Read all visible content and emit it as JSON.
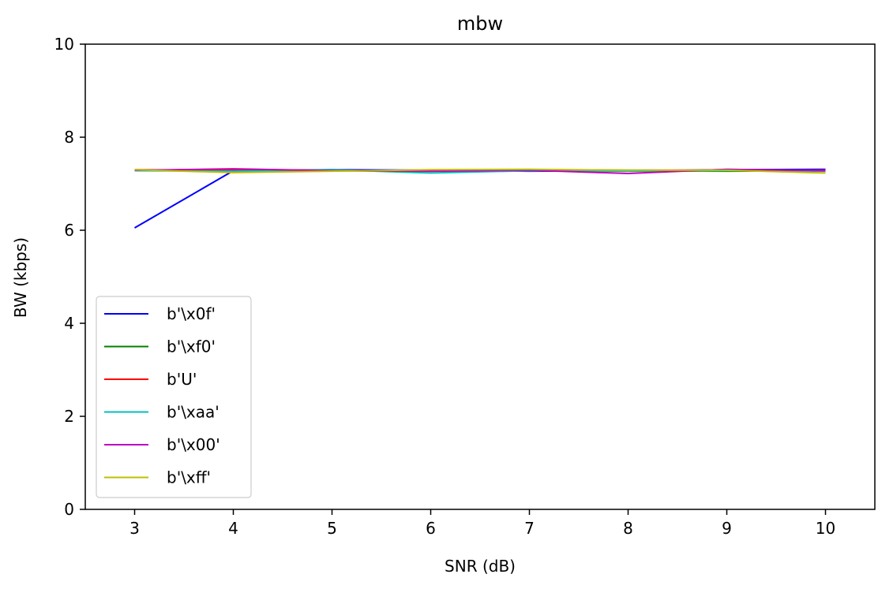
{
  "chart_data": {
    "type": "line",
    "title": "mbw",
    "xlabel": "SNR (dB)",
    "ylabel": "BW (kbps)",
    "xlim": [
      2.5,
      10.5
    ],
    "ylim": [
      0,
      10
    ],
    "x_ticks": [
      3,
      4,
      5,
      6,
      7,
      8,
      9,
      10
    ],
    "y_ticks": [
      0,
      2,
      4,
      6,
      8,
      10
    ],
    "x_tick_labels": [
      "3",
      "4",
      "5",
      "6",
      "7",
      "8",
      "9",
      "10"
    ],
    "y_tick_labels": [
      "0",
      "2",
      "4",
      "6",
      "8",
      "10"
    ],
    "grid": false,
    "legend_position": "lower-left",
    "x": [
      3,
      4,
      5,
      6,
      7,
      8,
      9,
      10
    ],
    "series": [
      {
        "name": "b'\\x0f'",
        "color": "#0000ff",
        "values": [
          6.05,
          7.28,
          7.3,
          7.29,
          7.27,
          7.28,
          7.3,
          7.31
        ]
      },
      {
        "name": "b'\\xf0'",
        "color": "#008000",
        "values": [
          7.29,
          7.27,
          7.28,
          7.28,
          7.29,
          7.28,
          7.27,
          7.28
        ]
      },
      {
        "name": "b'U'",
        "color": "#ff0000",
        "values": [
          7.3,
          7.29,
          7.28,
          7.27,
          7.3,
          7.29,
          7.29,
          7.29
        ]
      },
      {
        "name": "b'\\xaa'",
        "color": "#00bfbf",
        "values": [
          7.28,
          7.27,
          7.3,
          7.23,
          7.28,
          7.27,
          7.28,
          7.27
        ]
      },
      {
        "name": "b'\\x00'",
        "color": "#bf00bf",
        "values": [
          7.29,
          7.32,
          7.28,
          7.27,
          7.29,
          7.22,
          7.31,
          7.28
        ]
      },
      {
        "name": "b'\\xff'",
        "color": "#bfbf00",
        "values": [
          7.3,
          7.24,
          7.27,
          7.3,
          7.31,
          7.29,
          7.29,
          7.23
        ]
      }
    ]
  }
}
